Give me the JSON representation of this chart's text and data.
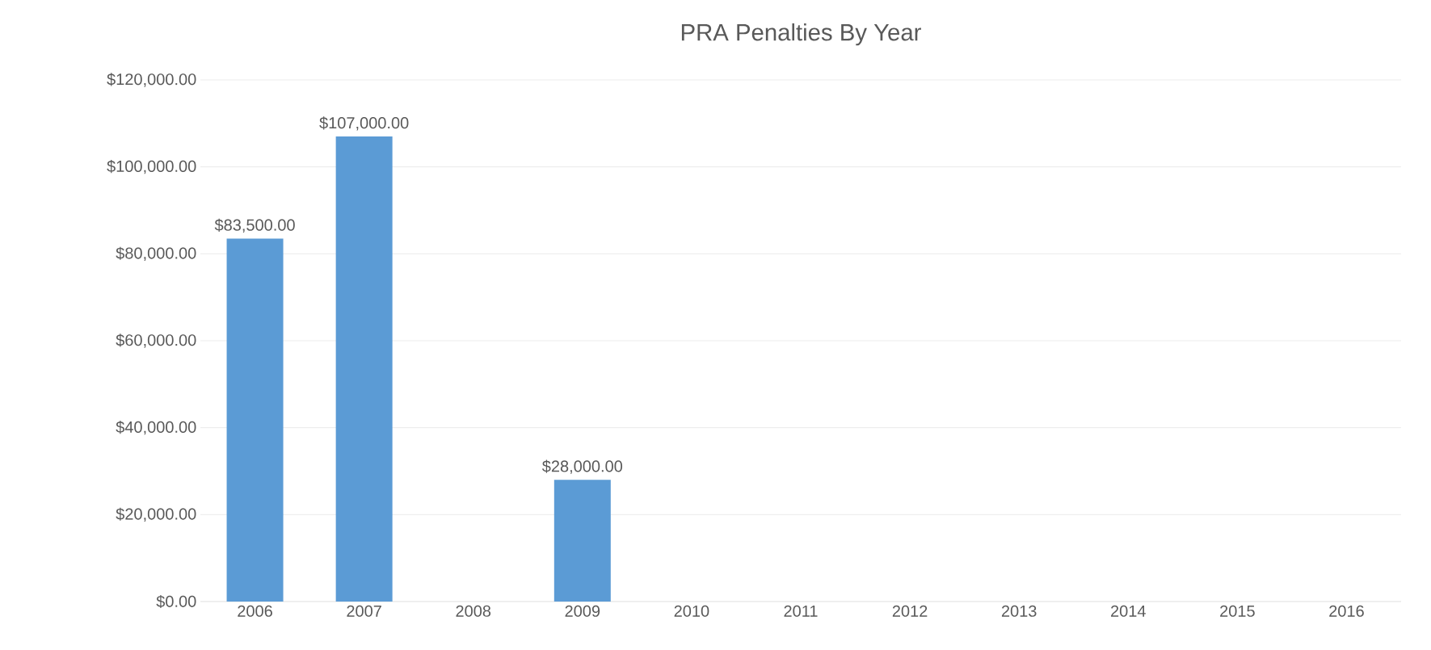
{
  "chart_data": {
    "type": "bar",
    "title": "PRA Penalties By Year",
    "categories": [
      "2006",
      "2007",
      "2008",
      "2009",
      "2010",
      "2011",
      "2012",
      "2013",
      "2014",
      "2015",
      "2016"
    ],
    "values": [
      83500,
      107000,
      0,
      28000,
      0,
      0,
      0,
      0,
      0,
      0,
      0
    ],
    "value_labels": [
      "$83,500.00",
      "$107,000.00",
      null,
      "$28,000.00",
      null,
      null,
      null,
      null,
      null,
      null,
      null
    ],
    "color": "#5b9bd5",
    "ylim": [
      0,
      120000
    ],
    "yticks": [
      {
        "value": 0,
        "label": "$0.00"
      },
      {
        "value": 20000,
        "label": "$20,000.00"
      },
      {
        "value": 40000,
        "label": "$40,000.00"
      },
      {
        "value": 60000,
        "label": "$60,000.00"
      },
      {
        "value": 80000,
        "label": "$80,000.00"
      },
      {
        "value": 100000,
        "label": "$100,000.00"
      },
      {
        "value": 120000,
        "label": "$120,000.00"
      }
    ],
    "grid": "y"
  }
}
